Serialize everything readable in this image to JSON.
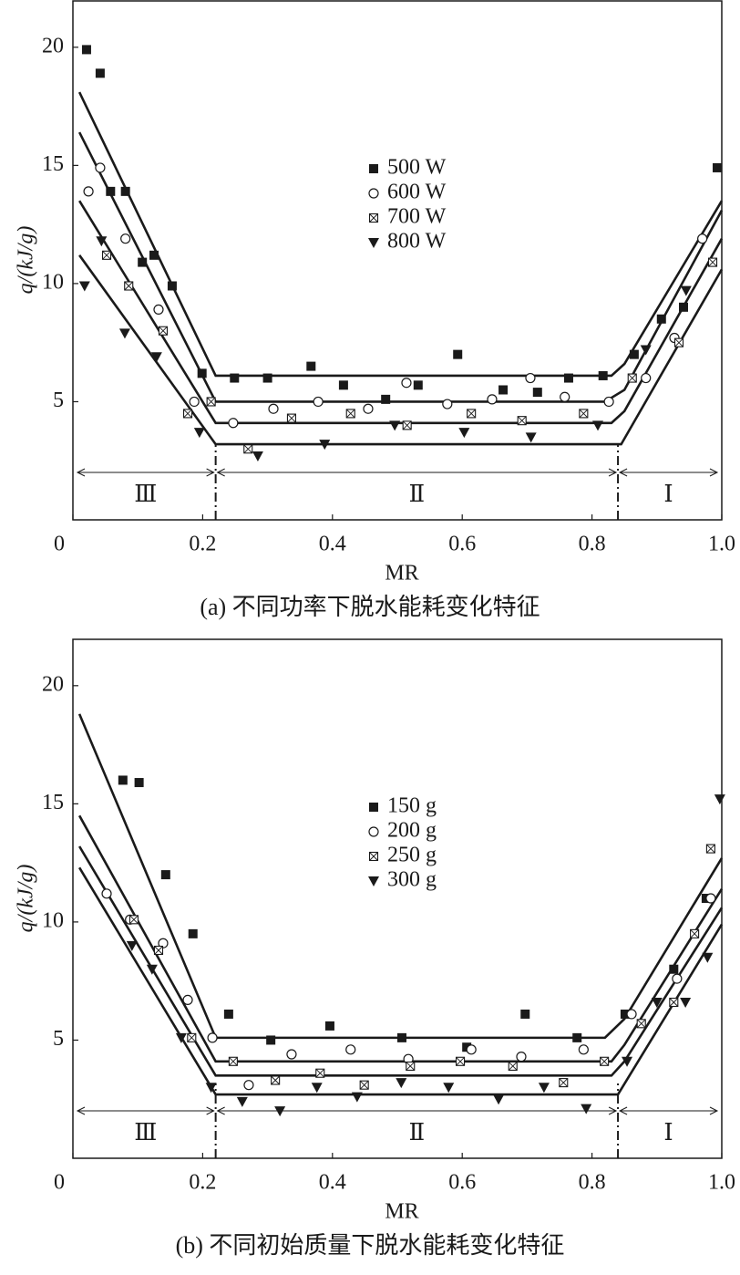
{
  "chart_data": [
    {
      "type": "scatter",
      "caption": "(a) 不同功率下脱水能耗变化特征",
      "xlabel": "MR",
      "ylabel": "q/(kJ/g)",
      "xlim": [
        0,
        1
      ],
      "ylim": [
        0,
        22
      ],
      "xticks": [
        0,
        0.2,
        0.4,
        0.6,
        0.8,
        {
          "value": 1,
          "label": "1.0"
        }
      ],
      "yticks": [
        5,
        10,
        15,
        20
      ],
      "region_boundaries": [
        0.22,
        0.84
      ],
      "region_labels": [
        "Ⅲ",
        "Ⅱ",
        "Ⅰ"
      ],
      "series": [
        {
          "name": "500 W",
          "marker": "square",
          "color": "#1a1a1a",
          "x": [
            0.021,
            0.042,
            0.058,
            0.081,
            0.107,
            0.125,
            0.153,
            0.199,
            0.249,
            0.3,
            0.367,
            0.417,
            0.482,
            0.532,
            0.593,
            0.663,
            0.716,
            0.764,
            0.817,
            0.865,
            0.907,
            0.941,
            0.993
          ],
          "values": [
            19.9,
            18.9,
            13.9,
            13.9,
            10.9,
            11.2,
            9.9,
            6.2,
            6.0,
            6.0,
            6.5,
            5.7,
            5.1,
            5.7,
            7.0,
            5.5,
            5.4,
            6.0,
            6.1,
            7.0,
            8.5,
            9.0,
            14.9
          ],
          "fit_x": [
            0.01,
            0.22,
            0.83,
            0.85,
            1.0
          ],
          "fit_y": [
            18.1,
            6.1,
            6.1,
            6.6,
            13.5
          ]
        },
        {
          "name": "600 W",
          "marker": "circle",
          "color": "#1a1a1a",
          "x": [
            0.024,
            0.042,
            0.081,
            0.132,
            0.187,
            0.247,
            0.309,
            0.378,
            0.455,
            0.514,
            0.577,
            0.646,
            0.705,
            0.758,
            0.826,
            0.883,
            0.927,
            0.97
          ],
          "values": [
            13.9,
            14.9,
            11.9,
            8.9,
            5.0,
            4.1,
            4.7,
            5.0,
            4.7,
            5.8,
            4.9,
            5.1,
            6.0,
            5.2,
            5.0,
            6.0,
            7.7,
            11.9
          ],
          "fit_x": [
            0.01,
            0.22,
            0.82,
            0.85,
            1.0
          ],
          "fit_y": [
            16.4,
            5.0,
            5.0,
            5.5,
            13.1
          ]
        },
        {
          "name": "700 W",
          "marker": "boxx",
          "color": "#1a1a1a",
          "x": [
            0.052,
            0.086,
            0.139,
            0.177,
            0.213,
            0.27,
            0.337,
            0.428,
            0.515,
            0.614,
            0.692,
            0.787,
            0.862,
            0.934,
            0.986
          ],
          "values": [
            11.2,
            9.9,
            8.0,
            4.5,
            5.0,
            3.0,
            4.3,
            4.5,
            4.0,
            4.5,
            4.2,
            4.5,
            6.0,
            7.5,
            10.9
          ],
          "fit_x": [
            0.01,
            0.22,
            0.83,
            0.85,
            1.0
          ],
          "fit_y": [
            13.5,
            4.1,
            4.1,
            4.6,
            11.9
          ]
        },
        {
          "name": "800 W",
          "marker": "triangle",
          "color": "#1a1a1a",
          "x": [
            0.018,
            0.044,
            0.08,
            0.129,
            0.195,
            0.285,
            0.388,
            0.496,
            0.603,
            0.706,
            0.809,
            0.883,
            0.945
          ],
          "values": [
            9.9,
            11.8,
            7.9,
            6.9,
            3.7,
            2.7,
            3.2,
            4.0,
            3.7,
            3.5,
            4.0,
            7.2,
            9.7
          ],
          "fit_x": [
            0.01,
            0.22,
            0.845,
            1.0
          ],
          "fit_y": [
            11.2,
            3.2,
            3.2,
            10.6
          ]
        }
      ]
    },
    {
      "type": "scatter",
      "caption": "(b) 不同初始质量下脱水能耗变化特征",
      "xlabel": "MR",
      "ylabel": "q/(kJ/g)",
      "xlim": [
        0,
        1
      ],
      "ylim": [
        0,
        22
      ],
      "xticks": [
        0,
        0.2,
        0.4,
        0.6,
        0.8,
        {
          "value": 1,
          "label": "1.0"
        }
      ],
      "yticks": [
        5,
        10,
        15,
        20
      ],
      "region_boundaries": [
        0.22,
        0.84
      ],
      "region_labels": [
        "Ⅲ",
        "Ⅱ",
        "Ⅰ"
      ],
      "series": [
        {
          "name": "150 g",
          "marker": "square",
          "color": "#1a1a1a",
          "x": [
            0.077,
            0.102,
            0.143,
            0.185,
            0.24,
            0.305,
            0.396,
            0.507,
            0.607,
            0.697,
            0.777,
            0.851,
            0.926,
            0.976
          ],
          "values": [
            16.0,
            15.9,
            12.0,
            9.5,
            6.1,
            5.0,
            5.6,
            5.1,
            4.7,
            6.1,
            5.1,
            6.1,
            8.0,
            11.0
          ],
          "fit_x": [
            0.01,
            0.22,
            0.82,
            0.85,
            1.0
          ],
          "fit_y": [
            18.8,
            5.1,
            5.1,
            5.9,
            12.7
          ]
        },
        {
          "name": "200 g",
          "marker": "circle",
          "color": "#1a1a1a",
          "x": [
            0.052,
            0.088,
            0.139,
            0.177,
            0.215,
            0.271,
            0.337,
            0.428,
            0.517,
            0.614,
            0.691,
            0.787,
            0.861,
            0.931,
            0.983
          ],
          "values": [
            11.2,
            10.1,
            9.1,
            6.7,
            5.1,
            3.1,
            4.4,
            4.6,
            4.2,
            4.6,
            4.3,
            4.6,
            6.1,
            7.6,
            11.0
          ],
          "fit_x": [
            0.01,
            0.22,
            0.83,
            0.85,
            1.0
          ],
          "fit_y": [
            14.5,
            4.1,
            4.1,
            4.8,
            11.4
          ]
        },
        {
          "name": "250 g",
          "marker": "boxx",
          "color": "#1a1a1a",
          "x": [
            0.094,
            0.132,
            0.183,
            0.247,
            0.312,
            0.381,
            0.449,
            0.52,
            0.597,
            0.678,
            0.756,
            0.819,
            0.876,
            0.926,
            0.958,
            0.983
          ],
          "values": [
            10.1,
            8.8,
            5.1,
            4.1,
            3.3,
            3.6,
            3.1,
            3.9,
            4.1,
            3.9,
            3.2,
            4.1,
            5.7,
            6.6,
            9.5,
            13.1
          ],
          "fit_x": [
            0.01,
            0.22,
            0.83,
            0.85,
            1.0
          ],
          "fit_y": [
            13.2,
            3.5,
            3.5,
            4.1,
            10.6
          ]
        },
        {
          "name": "300 g",
          "marker": "triangle",
          "color": "#1a1a1a",
          "x": [
            0.091,
            0.122,
            0.167,
            0.213,
            0.261,
            0.319,
            0.376,
            0.438,
            0.506,
            0.579,
            0.656,
            0.726,
            0.791,
            0.854,
            0.9,
            0.944,
            0.978,
            0.997
          ],
          "values": [
            9.0,
            8.0,
            5.1,
            3.0,
            2.4,
            2.0,
            3.0,
            2.6,
            3.2,
            3.0,
            2.5,
            3.0,
            2.1,
            4.1,
            6.6,
            6.6,
            8.5,
            15.2
          ],
          "fit_x": [
            0.01,
            0.22,
            0.84,
            1.0
          ],
          "fit_y": [
            12.3,
            2.7,
            2.7,
            9.9
          ]
        }
      ]
    }
  ]
}
